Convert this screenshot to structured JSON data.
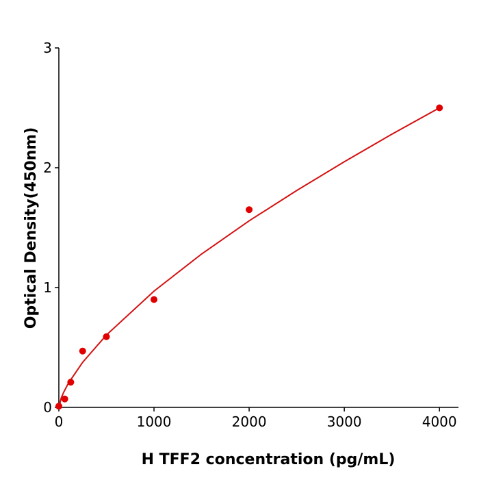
{
  "chart_data": {
    "type": "scatter",
    "xlabel": "H  TFF2 concentration (pg/mL)",
    "ylabel": "Optical Density(450nm)",
    "x": [
      0,
      62.5,
      125,
      250,
      500,
      1000,
      2000,
      4000
    ],
    "values": [
      0.01,
      0.07,
      0.21,
      0.47,
      0.59,
      0.9,
      1.65,
      2.5
    ],
    "color": "#e00000",
    "fit": {
      "color": "#d41010",
      "x": [
        0,
        25,
        50,
        100,
        250,
        500,
        1000,
        1500,
        2000,
        2500,
        3000,
        3500,
        4000
      ],
      "values": [
        0,
        0.078,
        0.125,
        0.201,
        0.376,
        0.604,
        0.97,
        1.28,
        1.557,
        1.81,
        2.05,
        2.28,
        2.5
      ]
    },
    "xlim": [
      0,
      4200
    ],
    "ylim": [
      0,
      3
    ],
    "xticks": [
      0,
      1000,
      2000,
      3000,
      4000
    ],
    "yticks": [
      0,
      1,
      2,
      3
    ]
  }
}
